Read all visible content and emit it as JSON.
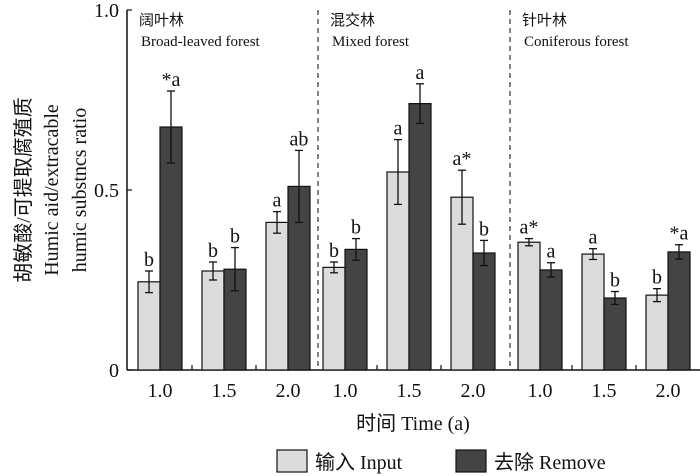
{
  "chart_data": {
    "type": "bar",
    "ylabel_lines": [
      "胡敏酸/可提取腐殖质",
      "Humic aid/extracable",
      "humic substncs ratio"
    ],
    "xlabel": "时间 Time (a)",
    "ylim": [
      0,
      1.0
    ],
    "yticks": [
      "0",
      "0.5",
      "1.0"
    ],
    "ytick_values": [
      0,
      0.5,
      1.0
    ],
    "groups": [
      {
        "name_cn": "阔叶林",
        "name_en": "Broad-leaved forest",
        "categories": [
          "1.0",
          "1.5",
          "2.0"
        ],
        "input": [
          0.245,
          0.275,
          0.41
        ],
        "input_err": [
          0.03,
          0.025,
          0.03
        ],
        "input_labels": [
          "b",
          "b",
          "a"
        ],
        "remove": [
          0.675,
          0.28,
          0.51
        ],
        "remove_err": [
          0.1,
          0.06,
          0.1
        ],
        "remove_labels": [
          "*a",
          "b",
          "ab"
        ]
      },
      {
        "name_cn": "混交林",
        "name_en": "Mixed forest",
        "categories": [
          "1.0",
          "1.5",
          "2.0"
        ],
        "input": [
          0.285,
          0.55,
          0.48
        ],
        "input_err": [
          0.015,
          0.09,
          0.075
        ],
        "input_labels": [
          "b",
          "a",
          "a*"
        ],
        "remove": [
          0.335,
          0.74,
          0.325
        ],
        "remove_err": [
          0.03,
          0.055,
          0.035
        ],
        "remove_labels": [
          "b",
          "a",
          "b"
        ]
      },
      {
        "name_cn": "针叶林",
        "name_en": "Coniferous forest",
        "categories": [
          "1.0",
          "1.5",
          "2.0"
        ],
        "input": [
          0.355,
          0.322,
          0.208
        ],
        "input_err": [
          0.01,
          0.015,
          0.018
        ],
        "input_labels": [
          "a*",
          "a",
          "b"
        ],
        "remove": [
          0.278,
          0.2,
          0.328
        ],
        "remove_err": [
          0.02,
          0.018,
          0.02
        ],
        "remove_labels": [
          "a",
          "b",
          "*a"
        ]
      }
    ],
    "legend": [
      {
        "label": "输入 Input",
        "color": "#dcdcdc"
      },
      {
        "label": "去除 Remove",
        "color": "#444444"
      }
    ],
    "legend_position": "bottom-right"
  }
}
